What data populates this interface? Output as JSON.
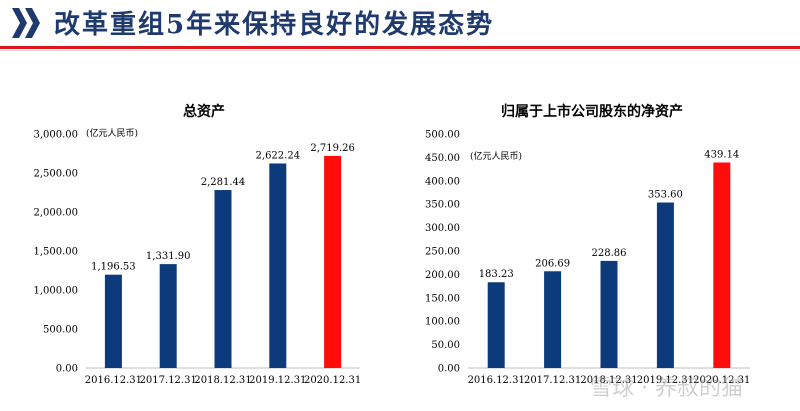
{
  "header": {
    "title": "改革重组5年来保持良好的发展态势",
    "icon": "double-chevron-right-icon"
  },
  "colors": {
    "navy": "#0d3a7a",
    "highlight": "#ff0d0d",
    "title": "#1f3a6e",
    "rule": "#e0141e"
  },
  "watermark": "雪球 · 养叔的猫",
  "chart_data": [
    {
      "type": "bar",
      "title": "总资产",
      "unit_label": "(亿元人民币)",
      "categories": [
        "2016.12.31",
        "2017.12.31",
        "2018.12.31",
        "2019.12.31",
        "2020.12.31"
      ],
      "values": [
        1196.53,
        1331.9,
        2281.44,
        2622.24,
        2719.26
      ],
      "value_labels": [
        "1,196.53",
        "1,331.90",
        "2,281.44",
        "2,622.24",
        "2,719.26"
      ],
      "highlight_index": 4,
      "ylim": [
        0,
        3000
      ],
      "yticks": [
        0,
        500,
        1000,
        1500,
        2000,
        2500,
        3000
      ],
      "ytick_labels": [
        "0.00",
        "500.00",
        "1,000.00",
        "1,500.00",
        "2,000.00",
        "2,500.00",
        "3,000.00"
      ],
      "grid": false
    },
    {
      "type": "bar",
      "title": "归属于上市公司股东的净资产",
      "unit_label": "(亿元人民币)",
      "categories": [
        "2016.12.31",
        "2017.12.31",
        "2018.12.31",
        "2019.12.31",
        "2020.12.31"
      ],
      "values": [
        183.23,
        206.69,
        228.86,
        353.6,
        439.14
      ],
      "value_labels": [
        "183.23",
        "206.69",
        "228.86",
        "353.60",
        "439.14"
      ],
      "highlight_index": 4,
      "ylim": [
        0,
        500
      ],
      "yticks": [
        0,
        50,
        100,
        150,
        200,
        250,
        300,
        350,
        400,
        450,
        500
      ],
      "ytick_labels": [
        "0.00",
        "50.00",
        "100.00",
        "150.00",
        "200.00",
        "250.00",
        "300.00",
        "350.00",
        "400.00",
        "450.00",
        "500.00"
      ],
      "grid": false
    }
  ]
}
